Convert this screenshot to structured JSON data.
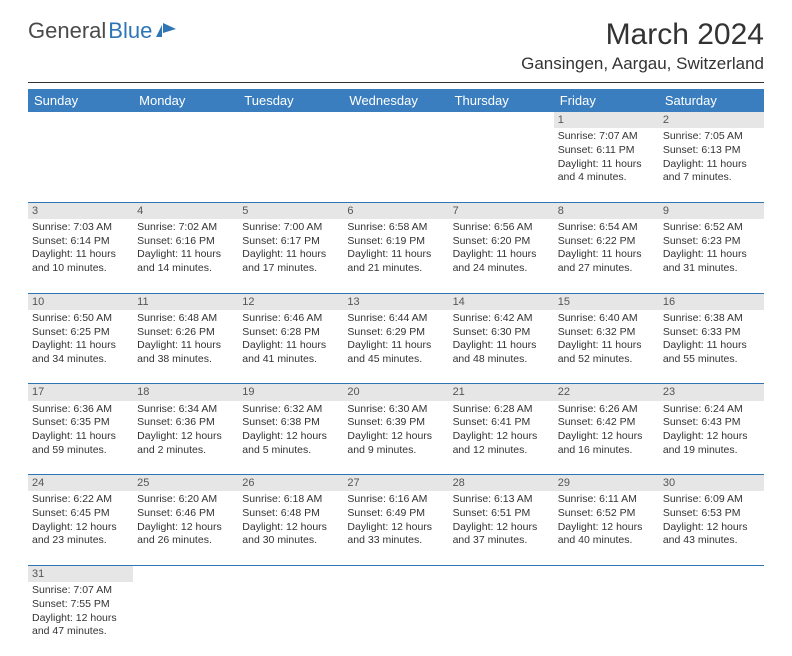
{
  "logo": {
    "text1": "General",
    "text2": "Blue"
  },
  "title": "March 2024",
  "location": "Gansingen, Aargau, Switzerland",
  "colors": {
    "header_bg": "#3a7ebf",
    "header_fg": "#ffffff",
    "daynum_bg": "#e6e6e6",
    "rule": "#2e75b6",
    "logo_blue": "#2e75b6"
  },
  "weekdays": [
    "Sunday",
    "Monday",
    "Tuesday",
    "Wednesday",
    "Thursday",
    "Friday",
    "Saturday"
  ],
  "weeks": [
    [
      null,
      null,
      null,
      null,
      null,
      {
        "n": "1",
        "sr": "Sunrise: 7:07 AM",
        "ss": "Sunset: 6:11 PM",
        "dl": "Daylight: 11 hours and 4 minutes."
      },
      {
        "n": "2",
        "sr": "Sunrise: 7:05 AM",
        "ss": "Sunset: 6:13 PM",
        "dl": "Daylight: 11 hours and 7 minutes."
      }
    ],
    [
      {
        "n": "3",
        "sr": "Sunrise: 7:03 AM",
        "ss": "Sunset: 6:14 PM",
        "dl": "Daylight: 11 hours and 10 minutes."
      },
      {
        "n": "4",
        "sr": "Sunrise: 7:02 AM",
        "ss": "Sunset: 6:16 PM",
        "dl": "Daylight: 11 hours and 14 minutes."
      },
      {
        "n": "5",
        "sr": "Sunrise: 7:00 AM",
        "ss": "Sunset: 6:17 PM",
        "dl": "Daylight: 11 hours and 17 minutes."
      },
      {
        "n": "6",
        "sr": "Sunrise: 6:58 AM",
        "ss": "Sunset: 6:19 PM",
        "dl": "Daylight: 11 hours and 21 minutes."
      },
      {
        "n": "7",
        "sr": "Sunrise: 6:56 AM",
        "ss": "Sunset: 6:20 PM",
        "dl": "Daylight: 11 hours and 24 minutes."
      },
      {
        "n": "8",
        "sr": "Sunrise: 6:54 AM",
        "ss": "Sunset: 6:22 PM",
        "dl": "Daylight: 11 hours and 27 minutes."
      },
      {
        "n": "9",
        "sr": "Sunrise: 6:52 AM",
        "ss": "Sunset: 6:23 PM",
        "dl": "Daylight: 11 hours and 31 minutes."
      }
    ],
    [
      {
        "n": "10",
        "sr": "Sunrise: 6:50 AM",
        "ss": "Sunset: 6:25 PM",
        "dl": "Daylight: 11 hours and 34 minutes."
      },
      {
        "n": "11",
        "sr": "Sunrise: 6:48 AM",
        "ss": "Sunset: 6:26 PM",
        "dl": "Daylight: 11 hours and 38 minutes."
      },
      {
        "n": "12",
        "sr": "Sunrise: 6:46 AM",
        "ss": "Sunset: 6:28 PM",
        "dl": "Daylight: 11 hours and 41 minutes."
      },
      {
        "n": "13",
        "sr": "Sunrise: 6:44 AM",
        "ss": "Sunset: 6:29 PM",
        "dl": "Daylight: 11 hours and 45 minutes."
      },
      {
        "n": "14",
        "sr": "Sunrise: 6:42 AM",
        "ss": "Sunset: 6:30 PM",
        "dl": "Daylight: 11 hours and 48 minutes."
      },
      {
        "n": "15",
        "sr": "Sunrise: 6:40 AM",
        "ss": "Sunset: 6:32 PM",
        "dl": "Daylight: 11 hours and 52 minutes."
      },
      {
        "n": "16",
        "sr": "Sunrise: 6:38 AM",
        "ss": "Sunset: 6:33 PM",
        "dl": "Daylight: 11 hours and 55 minutes."
      }
    ],
    [
      {
        "n": "17",
        "sr": "Sunrise: 6:36 AM",
        "ss": "Sunset: 6:35 PM",
        "dl": "Daylight: 11 hours and 59 minutes."
      },
      {
        "n": "18",
        "sr": "Sunrise: 6:34 AM",
        "ss": "Sunset: 6:36 PM",
        "dl": "Daylight: 12 hours and 2 minutes."
      },
      {
        "n": "19",
        "sr": "Sunrise: 6:32 AM",
        "ss": "Sunset: 6:38 PM",
        "dl": "Daylight: 12 hours and 5 minutes."
      },
      {
        "n": "20",
        "sr": "Sunrise: 6:30 AM",
        "ss": "Sunset: 6:39 PM",
        "dl": "Daylight: 12 hours and 9 minutes."
      },
      {
        "n": "21",
        "sr": "Sunrise: 6:28 AM",
        "ss": "Sunset: 6:41 PM",
        "dl": "Daylight: 12 hours and 12 minutes."
      },
      {
        "n": "22",
        "sr": "Sunrise: 6:26 AM",
        "ss": "Sunset: 6:42 PM",
        "dl": "Daylight: 12 hours and 16 minutes."
      },
      {
        "n": "23",
        "sr": "Sunrise: 6:24 AM",
        "ss": "Sunset: 6:43 PM",
        "dl": "Daylight: 12 hours and 19 minutes."
      }
    ],
    [
      {
        "n": "24",
        "sr": "Sunrise: 6:22 AM",
        "ss": "Sunset: 6:45 PM",
        "dl": "Daylight: 12 hours and 23 minutes."
      },
      {
        "n": "25",
        "sr": "Sunrise: 6:20 AM",
        "ss": "Sunset: 6:46 PM",
        "dl": "Daylight: 12 hours and 26 minutes."
      },
      {
        "n": "26",
        "sr": "Sunrise: 6:18 AM",
        "ss": "Sunset: 6:48 PM",
        "dl": "Daylight: 12 hours and 30 minutes."
      },
      {
        "n": "27",
        "sr": "Sunrise: 6:16 AM",
        "ss": "Sunset: 6:49 PM",
        "dl": "Daylight: 12 hours and 33 minutes."
      },
      {
        "n": "28",
        "sr": "Sunrise: 6:13 AM",
        "ss": "Sunset: 6:51 PM",
        "dl": "Daylight: 12 hours and 37 minutes."
      },
      {
        "n": "29",
        "sr": "Sunrise: 6:11 AM",
        "ss": "Sunset: 6:52 PM",
        "dl": "Daylight: 12 hours and 40 minutes."
      },
      {
        "n": "30",
        "sr": "Sunrise: 6:09 AM",
        "ss": "Sunset: 6:53 PM",
        "dl": "Daylight: 12 hours and 43 minutes."
      }
    ],
    [
      {
        "n": "31",
        "sr": "Sunrise: 7:07 AM",
        "ss": "Sunset: 7:55 PM",
        "dl": "Daylight: 12 hours and 47 minutes."
      },
      null,
      null,
      null,
      null,
      null,
      null
    ]
  ]
}
